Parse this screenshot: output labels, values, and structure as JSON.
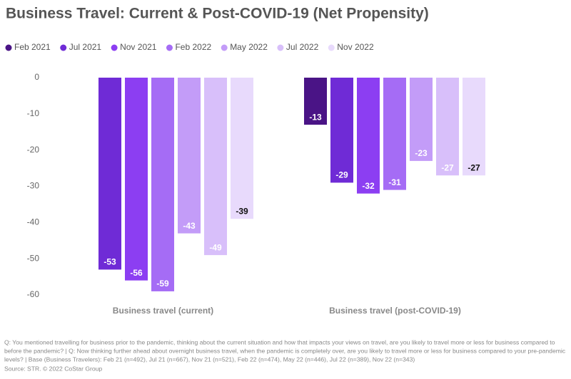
{
  "chart_data": {
    "type": "bar",
    "title": "Business Travel: Current & Post-COVID-19 (Net Propensity)",
    "categories": [
      "Business travel (current)",
      "Business travel (post-COVID-19)"
    ],
    "series": [
      {
        "name": "Feb 2021",
        "color": "#4a1486",
        "values": [
          null,
          -13
        ]
      },
      {
        "name": "Jul 2021",
        "color": "#6f2bd6",
        "values": [
          -53,
          -29
        ]
      },
      {
        "name": "Nov 2021",
        "color": "#8c3ef2",
        "values": [
          -56,
          -32
        ]
      },
      {
        "name": "Feb 2022",
        "color": "#a56cf5",
        "values": [
          -59,
          -31
        ]
      },
      {
        "name": "May 2022",
        "color": "#c39cf8",
        "values": [
          -43,
          -23
        ]
      },
      {
        "name": "Jul 2022",
        "color": "#d8bffa",
        "values": [
          -49,
          -27
        ]
      },
      {
        "name": "Nov 2022",
        "color": "#e8dafc",
        "values": [
          -39,
          -27
        ]
      }
    ],
    "ylim": [
      -60,
      0
    ],
    "yticks": [
      0,
      -10,
      -20,
      -30,
      -40,
      -50,
      -60
    ],
    "notes": [
      "Q: You mentioned travelling for business prior to the pandemic, thinking about the current situation and how that impacts your views on travel, are you likely to travel more or less for business compared to",
      "before the pandemic? | Q: Now thinking further ahead about overnight business travel, when the pandemic is completely over, are you likely to travel more or less for business compared to your pre-pandemic",
      "levels? | Base (Business Travelers): Feb 21 (n=492), Jul 21 (n=667), Nov 21 (n=521), Feb 22 (n=474), May 22 (n=446), Jul 22 (n=389), Nov 22 (n=343)"
    ],
    "source": "Source: STR. © 2022 CoStar Group"
  }
}
